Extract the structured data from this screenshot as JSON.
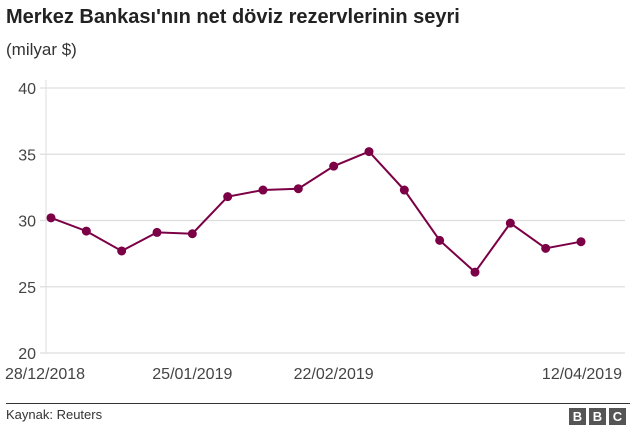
{
  "title": "Merkez Bankası'nın net döviz rezervlerinin seyri",
  "subtitle": "(milyar $)",
  "source": "Kaynak: Reuters",
  "logo": "BBC",
  "chart_data": {
    "type": "line",
    "x": [
      "28/12/2018",
      "04/01/2019",
      "11/01/2019",
      "18/01/2019",
      "25/01/2019",
      "01/02/2019",
      "08/02/2019",
      "15/02/2019",
      "22/02/2019",
      "01/03/2019",
      "08/03/2019",
      "15/03/2019",
      "22/03/2019",
      "29/03/2019",
      "05/04/2019",
      "12/04/2019"
    ],
    "values": [
      30.2,
      29.2,
      27.7,
      29.1,
      29.0,
      31.8,
      32.3,
      32.4,
      34.1,
      35.2,
      32.3,
      28.5,
      26.1,
      29.8,
      27.9,
      28.4
    ],
    "x_tick_labels": [
      "28/12/2018",
      "25/01/2019",
      "22/02/2019",
      "12/04/2019"
    ],
    "y_ticks": [
      "20",
      "25",
      "30",
      "35",
      "40"
    ],
    "ylim": [
      20,
      40
    ],
    "grid": true,
    "color": "#7b0046"
  }
}
